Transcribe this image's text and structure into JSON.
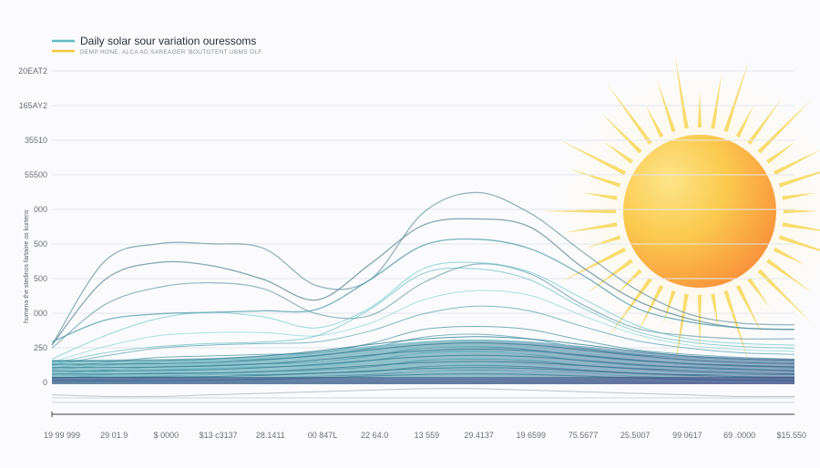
{
  "chart_data": {
    "type": "line",
    "title": "",
    "ylabel": "",
    "legend": [
      {
        "label": "Daily  solar sour variation ouressoms",
        "color": "#5fbcc0"
      },
      {
        "label": "DEMP HONE, ALCA AD SAREAGER 'BOUTOTENT UBMS OLF.",
        "color": "#f5c635"
      }
    ],
    "legend_position": "top-left",
    "grid": true,
    "y_tick_labels": [
      "20EAT2",
      "165AY2",
      "35510",
      "55500",
      "000",
      "500",
      "500",
      "000",
      "250",
      "0"
    ],
    "x_tick_labels": [
      "19 99 999",
      "29 01.9",
      "$ 0000",
      "$13 c3137",
      "28.1411",
      "00 847L",
      "22 64.0",
      "13 559",
      "29.4137",
      "19 6599",
      "75.5677",
      "25.5007",
      "99 0617",
      "69 .0000",
      "$15.550"
    ],
    "y_side_label": "humena the stedinos fartaine os kurtens",
    "x": [
      0,
      1,
      2,
      3,
      4,
      5,
      6,
      7,
      8,
      9,
      10,
      11,
      12,
      13,
      14
    ],
    "ylim": [
      0,
      1000
    ],
    "series": [
      {
        "values": [
          120,
          390,
          445,
          445,
          430,
          310,
          330,
          545,
          610,
          545,
          420,
          300,
          220,
          190,
          185
        ]
      },
      {
        "values": [
          120,
          330,
          385,
          375,
          330,
          265,
          380,
          505,
          525,
          500,
          370,
          265,
          205,
          175,
          170
        ]
      },
      {
        "values": [
          110,
          250,
          305,
          320,
          300,
          220,
          215,
          320,
          380,
          350,
          250,
          175,
          150,
          140,
          140
        ]
      },
      {
        "values": [
          130,
          200,
          220,
          225,
          230,
          235,
          330,
          440,
          460,
          430,
          345,
          240,
          195,
          175,
          170
        ]
      },
      {
        "values": [
          75,
          150,
          205,
          225,
          210,
          175,
          240,
          365,
          385,
          355,
          270,
          185,
          140,
          125,
          120
        ]
      },
      {
        "values": [
          65,
          115,
          150,
          160,
          160,
          150,
          190,
          265,
          295,
          280,
          215,
          155,
          120,
          105,
          100
        ]
      },
      {
        "values": [
          55,
          85,
          110,
          120,
          125,
          130,
          165,
          220,
          245,
          230,
          180,
          135,
          110,
          95,
          90
        ]
      },
      {
        "values": [
          60,
          95,
          115,
          125,
          130,
          150,
          235,
          350,
          365,
          330,
          240,
          165,
          130,
          115,
          110
        ]
      },
      {
        "values": [
          45,
          65,
          80,
          85,
          90,
          95,
          125,
          170,
          180,
          170,
          135,
          105,
          90,
          80,
          75
        ]
      },
      {
        "values": [
          40,
          55,
          65,
          70,
          75,
          85,
          110,
          145,
          155,
          140,
          110,
          90,
          80,
          70,
          65
        ]
      },
      {
        "values": [
          30,
          40,
          50,
          55,
          60,
          65,
          85,
          110,
          115,
          105,
          85,
          70,
          60,
          55,
          50
        ]
      },
      {
        "values": [
          25,
          35,
          40,
          45,
          50,
          55,
          70,
          95,
          100,
          90,
          70,
          55,
          50,
          45,
          45
        ]
      },
      {
        "values": [
          20,
          25,
          30,
          30,
          35,
          40,
          50,
          70,
          75,
          70,
          55,
          45,
          40,
          35,
          35
        ]
      },
      {
        "values": [
          15,
          20,
          20,
          25,
          25,
          30,
          35,
          50,
          55,
          50,
          40,
          30,
          25,
          25,
          25
        ]
      },
      {
        "values": [
          10,
          10,
          15,
          15,
          15,
          20,
          25,
          35,
          40,
          35,
          30,
          20,
          15,
          15,
          15
        ]
      },
      {
        "values": [
          -40,
          -45,
          -45,
          -40,
          -35,
          -30,
          -25,
          -20,
          -20,
          -25,
          -30,
          -35,
          -40,
          -45,
          -45
        ]
      }
    ]
  },
  "colors": {
    "axis": "#3a3d44",
    "grid": "#e3e6ec",
    "series_palette": [
      "#6f9aa6",
      "#5f8a98",
      "#7aa7b1",
      "#4e98a8",
      "#5ec1c6",
      "#7fd1d2",
      "#3f94a6",
      "#55b6bd",
      "#2f8295",
      "#3e8fa1",
      "#2a7a8f",
      "#4aa3b0",
      "#33708a",
      "#2a5f7c",
      "#3d4f86",
      "#9aa4ad"
    ],
    "sun_core_inner": "#fbd34d",
    "sun_core_outer": "#f88f3a",
    "sun_rays": "#f7d244"
  }
}
